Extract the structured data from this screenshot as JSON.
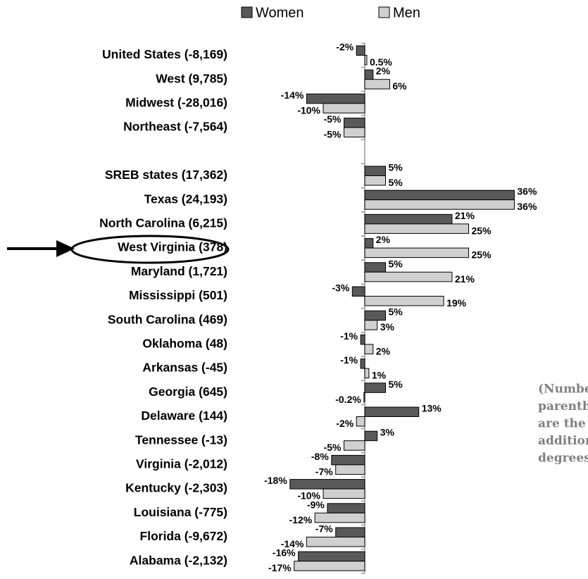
{
  "chart_data": {
    "type": "hbar",
    "categories": [
      "United States (-8,169)",
      "West (9,785)",
      "Midwest (-28,016)",
      "Northeast (-7,564)",
      null,
      "SREB states (17,362)",
      "Texas (24,193)",
      "North Carolina (6,215)",
      "West Virginia (378)",
      "Maryland (1,721)",
      "Mississippi (501)",
      "South Carolina (469)",
      "Oklahoma (48)",
      "Arkansas (-45)",
      "Georgia (645)",
      "Delaware (144)",
      "Tennessee (-13)",
      "Virginia (-2,012)",
      "Kentucky (-2,303)",
      "Louisiana (-775)",
      "Florida (-9,672)",
      "Alabama (-2,132)"
    ],
    "series": [
      {
        "name": "Women",
        "color": "#595959",
        "values": [
          -2,
          2,
          -14,
          -5,
          null,
          5,
          36,
          21,
          2,
          5,
          -3,
          5,
          -1,
          -1,
          5,
          13,
          3,
          -8,
          -18,
          -9,
          -7,
          -16
        ],
        "value_labels": [
          "-2%",
          "2%",
          "-14%",
          "-5%",
          null,
          "5%",
          "36%",
          "21%",
          "2%",
          "5%",
          "-3%",
          "5%",
          "-1%",
          "-1%",
          "5%",
          "13%",
          "3%",
          "-8%",
          "-18%",
          "-9%",
          "-7%",
          "-16%"
        ]
      },
      {
        "name": "Men",
        "color": "#d0d0d0",
        "values": [
          0.5,
          6,
          -10,
          -5,
          null,
          5,
          36,
          25,
          25,
          21,
          19,
          3,
          2,
          1,
          -0.2,
          -2,
          -5,
          -7,
          -10,
          -12,
          -14,
          -17
        ],
        "value_labels": [
          "0.5%",
          "6%",
          "-10%",
          "-5%",
          null,
          "5%",
          "36%",
          "25%",
          "25%",
          "21%",
          "19%",
          "3%",
          "2%",
          "1%",
          "-0.2%",
          "-2%",
          "-5%",
          "-7%",
          "-10%",
          "-12%",
          "-14%",
          "-17%"
        ]
      }
    ],
    "xlim": [
      -20,
      40
    ],
    "legend": "top",
    "annotation": [
      "(Numbers in",
      "parentheses",
      "are the total",
      "additional",
      "degrees.)"
    ]
  }
}
